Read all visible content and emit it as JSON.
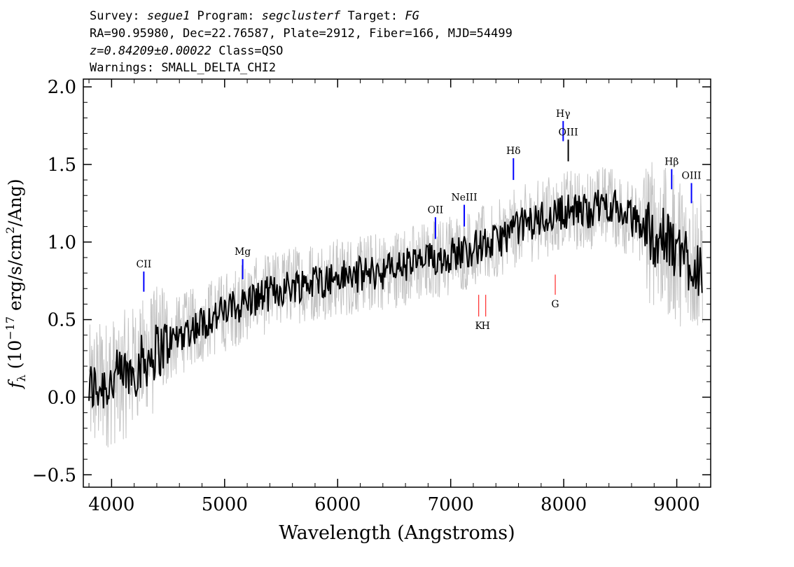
{
  "header": {
    "line1": {
      "survey_label": "Survey: ",
      "survey": "segue1",
      "program_label": " Program: ",
      "program": "segclusterf",
      "target_label": " Target: ",
      "target": "FG"
    },
    "line2": "RA=90.95980, Dec=22.76587, Plate=2912, Fiber=166, MJD=54499",
    "line3": {
      "z": "z=0.84209±0.00022",
      "class": " Class=QSO"
    },
    "line4": "Warnings: SMALL_DELTA_CHI2"
  },
  "chart_data": {
    "type": "line",
    "xlabel": "Wavelength (Angstroms)",
    "ylabel": "f_λ (10^-17 erg/s/cm²/Ang)",
    "xlim": [
      3750,
      9300
    ],
    "ylim": [
      -0.58,
      2.05
    ],
    "x_ticks": [
      "4000",
      "5000",
      "6000",
      "7000",
      "8000",
      "9000"
    ],
    "y_ticks": [
      "−0.5",
      "0.0",
      "0.5",
      "1.0",
      "1.5",
      "2.0"
    ],
    "grid": false,
    "series": [
      {
        "role": "flux",
        "color": "#000000",
        "x": [
          3800,
          4000,
          4200,
          4400,
          4600,
          4800,
          5000,
          5200,
          5400,
          5600,
          5800,
          6000,
          6200,
          6400,
          6600,
          6800,
          7000,
          7200,
          7400,
          7600,
          7800,
          8000,
          8200,
          8400,
          8600,
          8800,
          9000,
          9200
        ],
        "y": [
          0.05,
          0.1,
          0.18,
          0.3,
          0.4,
          0.48,
          0.55,
          0.62,
          0.67,
          0.72,
          0.75,
          0.77,
          0.79,
          0.81,
          0.85,
          0.88,
          0.92,
          0.96,
          1.0,
          1.1,
          1.15,
          1.2,
          1.2,
          1.25,
          1.15,
          1.05,
          0.95,
          0.85
        ]
      },
      {
        "role": "error_band",
        "color": "#c4c4c4",
        "note_hidden": false,
        "x": [
          3800,
          4000,
          4200,
          4400,
          4600,
          4800,
          5000,
          5200,
          5400,
          5600,
          5800,
          6000,
          6200,
          6400,
          6600,
          6800,
          7000,
          7200,
          7400,
          7600,
          7800,
          8000,
          8200,
          8400,
          8600,
          8800,
          9000,
          9200
        ],
        "y": [
          0.05,
          0.1,
          0.18,
          0.3,
          0.4,
          0.48,
          0.55,
          0.62,
          0.67,
          0.72,
          0.75,
          0.77,
          0.79,
          0.81,
          0.85,
          0.88,
          0.92,
          0.96,
          1.0,
          1.1,
          1.15,
          1.2,
          1.2,
          1.25,
          1.15,
          1.05,
          0.95,
          0.85
        ]
      }
    ],
    "emission_lines": [
      {
        "label": "CII",
        "x": 4285,
        "y0": 0.68,
        "y1": 0.81,
        "color": "#0000ff"
      },
      {
        "label": "Mg",
        "x": 5160,
        "y0": 0.76,
        "y1": 0.89,
        "color": "#0000ff"
      },
      {
        "label": "OII",
        "x": 6865,
        "y0": 1.02,
        "y1": 1.16,
        "color": "#0000ff"
      },
      {
        "label": "NeIII",
        "x": 7120,
        "y0": 1.1,
        "y1": 1.24,
        "color": "#0000ff"
      },
      {
        "label": "Hδ",
        "x": 7555,
        "y0": 1.4,
        "y1": 1.54,
        "color": "#0000ff"
      },
      {
        "label": "Hγ",
        "x": 7995,
        "y0": 1.65,
        "y1": 1.78,
        "color": "#0000ff"
      },
      {
        "label": "OIII",
        "x": 8040,
        "y0": 1.52,
        "y1": 1.66,
        "color": "#000000"
      },
      {
        "label": "Hβ",
        "x": 8955,
        "y0": 1.34,
        "y1": 1.47,
        "color": "#0000ff"
      },
      {
        "label": "OIII",
        "x": 9130,
        "y0": 1.25,
        "y1": 1.38,
        "color": "#0000ff"
      }
    ],
    "absorption_lines": [
      {
        "label": "K",
        "x": 7248,
        "y0": 0.52,
        "y1": 0.66,
        "color": "#ff0000"
      },
      {
        "label": "H",
        "x": 7310,
        "y0": 0.52,
        "y1": 0.66,
        "color": "#ff0000"
      },
      {
        "label": "G",
        "x": 7925,
        "y0": 0.66,
        "y1": 0.79,
        "color": "#ff0000"
      }
    ]
  }
}
